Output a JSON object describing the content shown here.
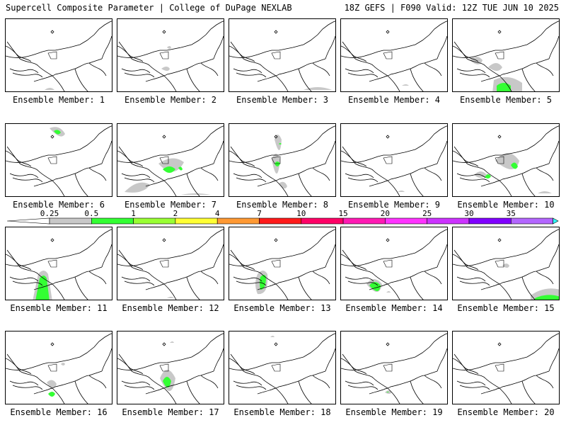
{
  "header": {
    "left_title": "Supercell Composite Parameter | College of DuPage NEXLAB",
    "right_title": "18Z GEFS | F090 Valid: 12Z TUE JUN 10 2025"
  },
  "colorbar": {
    "labels": [
      "0.25",
      "0.5",
      "1",
      "2",
      "4",
      "7",
      "10",
      "15",
      "20",
      "25",
      "30",
      "35"
    ],
    "colors": [
      "#c8c8c8",
      "#33ff33",
      "#99ff33",
      "#ffff33",
      "#ff9933",
      "#ff1a1a",
      "#ff0066",
      "#ff1ab3",
      "#ff33ff",
      "#cc33ff",
      "#8000ff",
      "#b366ff",
      "#33ffff"
    ]
  },
  "panels": [
    {
      "caption": "Ensemble Member: 1"
    },
    {
      "caption": "Ensemble Member: 2"
    },
    {
      "caption": "Ensemble Member: 3"
    },
    {
      "caption": "Ensemble Member: 4"
    },
    {
      "caption": "Ensemble Member: 5"
    },
    {
      "caption": "Ensemble Member: 6"
    },
    {
      "caption": "Ensemble Member: 7"
    },
    {
      "caption": "Ensemble Member: 8"
    },
    {
      "caption": "Ensemble Member: 9"
    },
    {
      "caption": "Ensemble Member: 10"
    },
    {
      "caption": "Ensemble Member: 11"
    },
    {
      "caption": "Ensemble Member: 12"
    },
    {
      "caption": "Ensemble Member: 13"
    },
    {
      "caption": "Ensemble Member: 14"
    },
    {
      "caption": "Ensemble Member: 15"
    },
    {
      "caption": "Ensemble Member: 16"
    },
    {
      "caption": "Ensemble Member: 17"
    },
    {
      "caption": "Ensemble Member: 18"
    },
    {
      "caption": "Ensemble Member: 19"
    },
    {
      "caption": "Ensemble Member: 20"
    }
  ]
}
